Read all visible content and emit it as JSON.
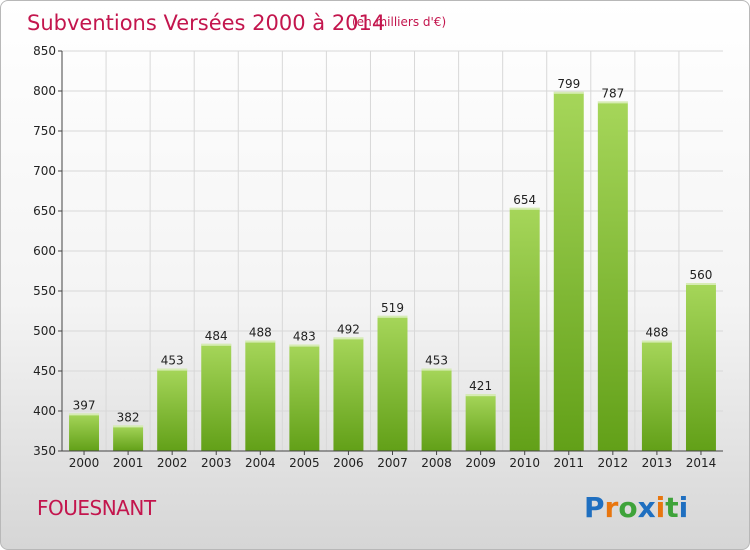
{
  "chart_data": {
    "type": "bar",
    "title": "Subventions Versées 2000 à 2014",
    "subtitle": "(en milliers d'€)",
    "categories": [
      "2000",
      "2001",
      "2002",
      "2003",
      "2004",
      "2005",
      "2006",
      "2007",
      "2008",
      "2009",
      "2010",
      "2011",
      "2012",
      "2013",
      "2014"
    ],
    "values": [
      397,
      382,
      453,
      484,
      488,
      483,
      492,
      519,
      453,
      421,
      654,
      799,
      787,
      488,
      560
    ],
    "ylim": [
      350,
      850
    ],
    "yticks": [
      350,
      400,
      450,
      500,
      550,
      600,
      650,
      700,
      750,
      800,
      850
    ],
    "xlabel": "",
    "ylabel": "",
    "grid": true
  },
  "location": "FOUESNANT",
  "brand": {
    "name": "Proxiti",
    "letters": [
      "P",
      "r",
      "o",
      "x",
      "i",
      "t",
      "i"
    ]
  },
  "colors": {
    "title": "#c3154d",
    "bar_top": "#a6d65a",
    "bar_bottom": "#62a018",
    "grid": "#d8d8d8",
    "axis": "#444444",
    "logo_letters": [
      "#1f6fc0",
      "#e8760f",
      "#3ea33a",
      "#1f6fc0",
      "#e8760f",
      "#3ea33a",
      "#1f6fc0"
    ]
  }
}
